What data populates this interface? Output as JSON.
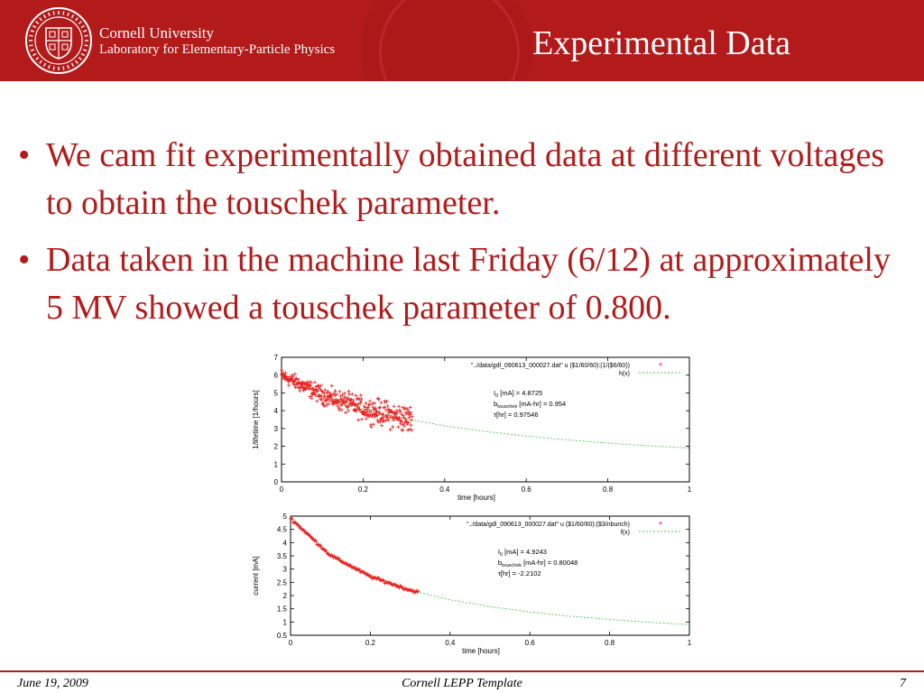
{
  "header": {
    "org_line1": "Cornell University",
    "org_line2": "Laboratory for Elementary-Particle Physics",
    "title": "Experimental Data",
    "seal_text": "CORNELL UNIVERSITY FOUNDED A.D. 1865"
  },
  "bullets": [
    "We cam fit experimentally obtained data at different voltages to obtain the touschek parameter.",
    "Data taken in the machine last Friday (6/12) at approximately 5 MV showed a touschek parameter of 0.800."
  ],
  "footer": {
    "date": "June 19, 2009",
    "center": "Cornell LEPP Template",
    "page": "7"
  },
  "colors": {
    "brand_red": "#b31b1b",
    "data_red": "#e8201f",
    "fit_green": "#4ccc4c"
  },
  "chart_data": [
    {
      "type": "scatter",
      "xlabel": "time [hours]",
      "ylabel": "1/lifetime [1/hours]",
      "xlim": [
        0,
        1
      ],
      "ylim": [
        0,
        7
      ],
      "xticks": [
        "0",
        "0.2",
        "0.4",
        "0.6",
        "0.8",
        "1"
      ],
      "yticks": [
        "0",
        "1",
        "2",
        "3",
        "4",
        "5",
        "6",
        "7"
      ],
      "legend": [
        "\"../data/gdl_090613_000027.dat\" u ($1/60/60):(1/($6/60))",
        "h(x)"
      ],
      "annotations": [
        {
          "sym": "I",
          "sub": "0",
          "text": " [mA] = 4.8725"
        },
        {
          "sym": "b",
          "sub": "touschek",
          "text": " [mA-hr] = 0.954"
        },
        {
          "sym": "τ",
          "sub": "",
          "text": "[hr] = 0.97546"
        }
      ],
      "series": [
        {
          "name": "\"../data/gdl_090613_000027.dat\" u ($1/60/60):(1/($6/60))",
          "kind": "points",
          "x_range": [
            0,
            0.32
          ],
          "trend": "decaying from ~5.9 to ~2.8",
          "scatter_spread": 0.9
        },
        {
          "name": "h(x)",
          "kind": "dashed-line",
          "x": [
            0,
            0.1,
            0.2,
            0.3,
            0.4,
            0.5,
            0.6,
            0.7,
            0.8,
            0.9,
            1.0
          ],
          "values": [
            5.98,
            4.88,
            4.12,
            3.57,
            3.15,
            2.83,
            2.57,
            2.36,
            2.18,
            2.03,
            1.9
          ]
        }
      ],
      "grid": false,
      "legend_position": "top-right"
    },
    {
      "type": "scatter",
      "xlabel": "time [hours]",
      "ylabel": "current [mA]",
      "xlim": [
        0,
        1
      ],
      "ylim": [
        0.5,
        5
      ],
      "xticks": [
        "0",
        "0.2",
        "0.4",
        "0.6",
        "0.8",
        "1"
      ],
      "yticks": [
        "0.5",
        "1",
        "1.5",
        "2",
        "2.5",
        "3",
        "3.5",
        "4",
        "4.5",
        "5"
      ],
      "legend": [
        "\"../data/gdl_090613_000027.dat\" u ($1/60/60):($3/nbunch)",
        "f(x)"
      ],
      "annotations": [
        {
          "sym": "I",
          "sub": "0",
          "text": " [mA] = 4.9243"
        },
        {
          "sym": "b",
          "sub": "touschek",
          "text": " [mA-hr] = 0.80048"
        },
        {
          "sym": "τ",
          "sub": "",
          "text": "[hr] = -2.2102"
        }
      ],
      "series": [
        {
          "name": "\"../data/gdl_090613_000027.dat\" u ($1/60/60):($3/nbunch)",
          "kind": "points",
          "x_range": [
            0,
            0.32
          ],
          "trend": "decaying from ~4.9 to ~1.8",
          "scatter_spread": 0.08
        },
        {
          "name": "f(x)",
          "kind": "dashed-line",
          "x": [
            0,
            0.1,
            0.2,
            0.3,
            0.4,
            0.5,
            0.6,
            0.7,
            0.8,
            0.9,
            1.0
          ],
          "values": [
            4.92,
            3.52,
            2.72,
            2.2,
            1.84,
            1.58,
            1.38,
            1.22,
            1.1,
            0.99,
            0.9
          ]
        }
      ],
      "grid": false,
      "legend_position": "top-right"
    }
  ]
}
